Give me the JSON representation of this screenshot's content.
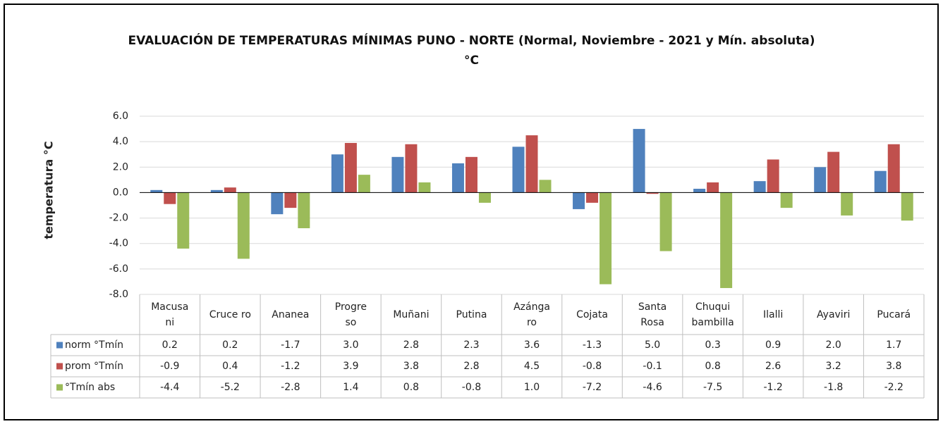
{
  "chart_data": {
    "type": "bar",
    "title": "EVALUACIÓN DE TEMPERATURAS MÍNIMAS PUNO - NORTE (Normal, Noviembre - 2021 y  Mín. absoluta)\n°C",
    "y_label": "temperatura °C",
    "categories": [
      "Macusa\nni",
      "Cruce ro",
      "Ananea",
      "Progre\nso",
      "Muñani",
      "Putina",
      "Azánga\nro",
      "Cojata",
      "Santa\nRosa",
      "Chuqui\nbambilla",
      "Ilalli",
      "Ayaviri",
      "Pucará"
    ],
    "series": [
      {
        "name": "norm °Tmín",
        "color": "#4f81bd",
        "values": [
          0.2,
          0.2,
          -1.7,
          3.0,
          2.8,
          2.3,
          3.6,
          -1.3,
          5.0,
          0.3,
          0.9,
          2.0,
          1.7
        ],
        "value_labels": [
          "0.2",
          "0.2",
          "-1.7",
          "3.0",
          "2.8",
          "2.3",
          "3.6",
          "-1.3",
          "5.0",
          "0.3",
          "0.9",
          "2.0",
          "1.7"
        ]
      },
      {
        "name": "prom °Tmín",
        "color": "#c0504d",
        "values": [
          -0.9,
          0.4,
          -1.2,
          3.9,
          3.8,
          2.8,
          4.5,
          -0.8,
          -0.1,
          0.8,
          2.6,
          3.2,
          3.8
        ],
        "value_labels": [
          "-0.9",
          "0.4",
          "-1.2",
          "3.9",
          "3.8",
          "2.8",
          "4.5",
          "-0.8",
          "-0.1",
          "0.8",
          "2.6",
          "3.2",
          "3.8"
        ]
      },
      {
        "name": "°Tmín abs",
        "color": "#9bbb59",
        "values": [
          -4.4,
          -5.2,
          -2.8,
          1.4,
          0.8,
          -0.8,
          1.0,
          -7.2,
          -4.6,
          -7.5,
          -1.2,
          -1.8,
          -2.2
        ],
        "value_labels": [
          "-4.4",
          "-5.2",
          "-2.8",
          "1.4",
          "0.8",
          "-0.8",
          "1.0",
          "-7.2",
          "-4.6",
          "-7.5",
          "-1.2",
          "-1.8",
          "-2.2"
        ]
      }
    ],
    "ylim": [
      -8,
      6
    ],
    "yticks": [
      {
        "value": -8,
        "label": "-8.0"
      },
      {
        "value": -6,
        "label": "-6.0"
      },
      {
        "value": -4,
        "label": "-4.0"
      },
      {
        "value": -2,
        "label": "-2.0"
      },
      {
        "value": 0,
        "label": "0.0"
      },
      {
        "value": 2,
        "label": "2.0"
      },
      {
        "value": 4,
        "label": "4.0"
      },
      {
        "value": 6,
        "label": "6.0"
      }
    ],
    "grid": true
  }
}
